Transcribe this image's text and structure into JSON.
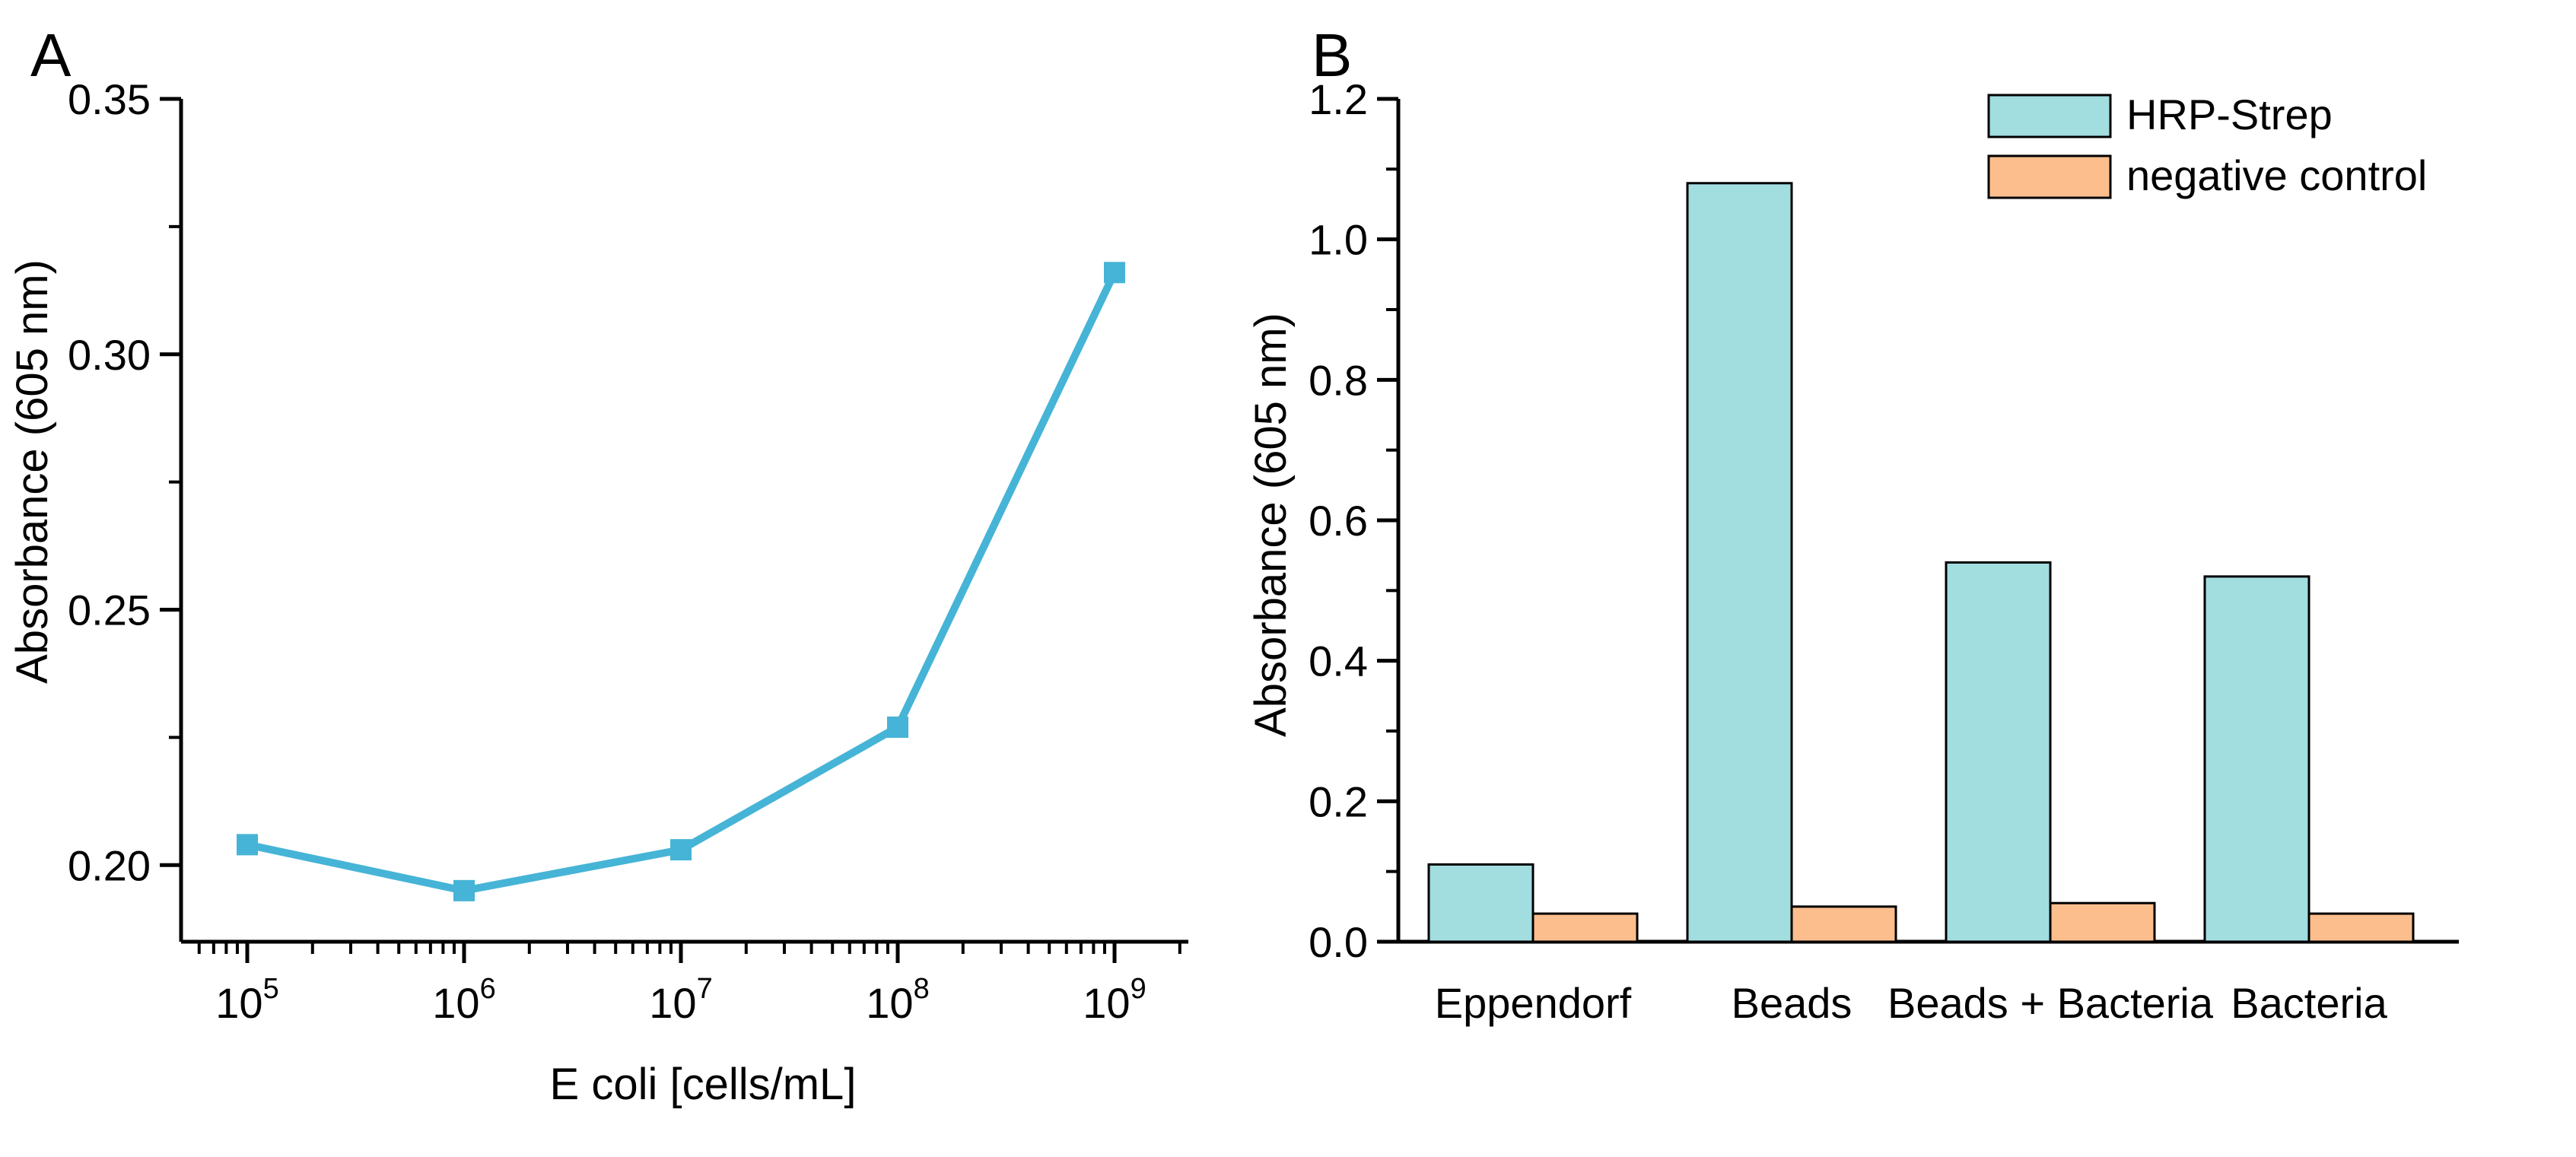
{
  "chart_data": [
    {
      "type": "line",
      "panel_label": "A",
      "xscale": "log",
      "x": [
        100000,
        1000000,
        10000000,
        100000000,
        1000000000
      ],
      "xtick_labels": [
        {
          "base": "10",
          "exp": "5"
        },
        {
          "base": "10",
          "exp": "6"
        },
        {
          "base": "10",
          "exp": "7"
        },
        {
          "base": "10",
          "exp": "8"
        },
        {
          "base": "10",
          "exp": "9"
        }
      ],
      "series": [
        {
          "name": "Absorbance",
          "values": [
            0.204,
            0.195,
            0.203,
            0.227,
            0.316
          ],
          "color": "#46B4D6"
        }
      ],
      "xlabel": "E coli [cells/mL]",
      "ylabel": "Absorbance (605 nm)",
      "ylim": [
        0.185,
        0.35
      ],
      "yticks": [
        "0.20",
        "0.25",
        "0.30",
        "0.35"
      ],
      "grid": false
    },
    {
      "type": "bar",
      "panel_label": "B",
      "categories": [
        "Eppendorf",
        "Beads",
        "Beads + Bacteria",
        "Bacteria"
      ],
      "series": [
        {
          "name": "HRP-Strep",
          "values": [
            0.11,
            1.08,
            0.54,
            0.52
          ],
          "color": "#A2DDE0"
        },
        {
          "name": "negative control",
          "values": [
            0.04,
            0.05,
            0.055,
            0.04
          ],
          "color": "#FDBE8D"
        }
      ],
      "xlabel": "",
      "ylabel": "Absorbance (605 nm)",
      "ylim": [
        0,
        1.2
      ],
      "yticks": [
        "0.0",
        "0.2",
        "0.4",
        "0.6",
        "0.8",
        "1.0",
        "1.2"
      ],
      "legend": "top-right",
      "grid": false
    }
  ]
}
